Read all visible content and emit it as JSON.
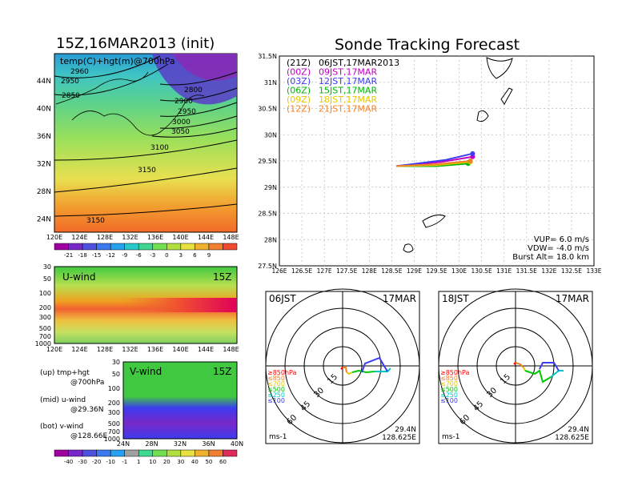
{
  "titles": {
    "main_left": "15Z,16MAR2013 (init)",
    "main_right": "Sonde Tracking Forecast"
  },
  "map_panel": {
    "label": "temp(C)+hgt(m)@700hPa",
    "lat_ticks": [
      "44N",
      "40N",
      "36N",
      "32N",
      "28N",
      "24N"
    ],
    "lon_ticks": [
      "120E",
      "124E",
      "128E",
      "132E",
      "136E",
      "140E",
      "144E",
      "148E"
    ],
    "contours": [
      "2950",
      "2960",
      "3000",
      "2800",
      "2850",
      "2900",
      "2950",
      "3000",
      "3050",
      "3100",
      "3150"
    ],
    "colorbar_labels": [
      "-21",
      "-18",
      "-15",
      "-12",
      "-9",
      "-6",
      "-3",
      "0",
      "3",
      "6",
      "9"
    ]
  },
  "u_panel": {
    "label": "U-wind",
    "time": "15Z",
    "p_ticks": [
      "30",
      "50",
      "100",
      "200",
      "300",
      "500",
      "700",
      "1000"
    ],
    "lon_ticks": [
      "120E",
      "124E",
      "128E",
      "132E",
      "136E",
      "140E",
      "144E",
      "148E"
    ]
  },
  "v_panel": {
    "label": "V-wind",
    "time": "15Z",
    "p_ticks": [
      "30",
      "50",
      "100",
      "200",
      "300",
      "500",
      "700",
      "1000"
    ],
    "lat_ticks": [
      "24N",
      "28N",
      "32N",
      "36N",
      "40N"
    ],
    "colorbar_labels": [
      "-40",
      "-30",
      "-20",
      "-10",
      "-1",
      "1",
      "10",
      "20",
      "30",
      "40",
      "50",
      "60"
    ]
  },
  "legend_notes": [
    "(up) tmp+hgt",
    "@700hPa",
    "(mid) u-wind",
    "@29.36N",
    "(bot) v-wind",
    "@128.66E"
  ],
  "track": {
    "legend": [
      {
        "code": "(21Z)",
        "text": "06JST,17MAR2013",
        "color": "#000000"
      },
      {
        "code": "(00Z)",
        "text": "09JST,17MAR",
        "color": "#c000c0"
      },
      {
        "code": "(03Z)",
        "text": "12JST,17MAR",
        "color": "#3c3cf0"
      },
      {
        "code": "(06Z)",
        "text": "15JST,17MAR",
        "color": "#00b400"
      },
      {
        "code": "(09Z)",
        "text": "18JST,17MAR",
        "color": "#e6c800"
      },
      {
        "code": "(12Z)",
        "text": "21JST,17MAR",
        "color": "#f08228"
      }
    ],
    "lat_ticks": [
      "31.5N",
      "31N",
      "30.5N",
      "30N",
      "29.5N",
      "29N",
      "28.5N",
      "28N",
      "27.5N"
    ],
    "lon_ticks": [
      "126E",
      "126.5E",
      "127E",
      "127.5E",
      "128E",
      "128.5E",
      "129E",
      "129.5E",
      "130E",
      "130.5E",
      "131E",
      "131.5E",
      "132E",
      "132.5E",
      "133E"
    ],
    "params": [
      "VUP=  6.0  m/s",
      "VDW= -4.0  m/s",
      "Burst Alt= 18.0  km"
    ]
  },
  "hodo_left": {
    "time": "06JST",
    "date": "17MAR",
    "rings": [
      "15",
      "30",
      "45",
      "60"
    ],
    "levels": [
      "≥850hPa",
      "≤850",
      "≤700",
      "≤500",
      "≤250",
      "≤100"
    ],
    "level_colors": [
      "#ff0000",
      "#f08228",
      "#e6c800",
      "#00c800",
      "#00c8c8",
      "#3c3cf0"
    ],
    "unit": "ms-1",
    "lat": "29.4N",
    "lon": "128.625E"
  },
  "hodo_right": {
    "time": "18JST",
    "date": "17MAR",
    "rings": [
      "15",
      "30",
      "45",
      "60"
    ],
    "levels": [
      "≥850hPa",
      "≤850",
      "≤700",
      "≤500",
      "≤250",
      "≤100"
    ],
    "level_colors": [
      "#ff0000",
      "#f08228",
      "#e6c800",
      "#00c800",
      "#00c8c8",
      "#3c3cf0"
    ],
    "unit": "ms-1",
    "lat": "29.4N",
    "lon": "128.625E"
  },
  "chart_data": {
    "type": "line",
    "title": "Sonde Tracking Forecast",
    "xlabel": "",
    "ylabel": "",
    "xlim": [
      126,
      133
    ],
    "ylim": [
      27.5,
      31.5
    ],
    "series": [
      {
        "name": "06JST,17MAR2013",
        "color": "#000000",
        "x": [
          128.6,
          129.5,
          130.2
        ],
        "y": [
          29.4,
          29.43,
          29.47
        ]
      },
      {
        "name": "09JST,17MAR",
        "color": "#c000c0",
        "x": [
          128.6,
          129.6,
          130.3
        ],
        "y": [
          29.4,
          29.48,
          29.58
        ]
      },
      {
        "name": "12JST,17MAR",
        "color": "#3c3cf0",
        "x": [
          128.6,
          129.7,
          130.3
        ],
        "y": [
          29.4,
          29.52,
          29.64
        ]
      },
      {
        "name": "15JST,17MAR",
        "color": "#00b400",
        "x": [
          128.6,
          129.5,
          130.2
        ],
        "y": [
          29.4,
          29.4,
          29.45
        ]
      },
      {
        "name": "18JST,17MAR",
        "color": "#e6c800",
        "x": [
          128.6,
          129.5,
          130.25
        ],
        "y": [
          29.4,
          29.42,
          29.48
        ]
      },
      {
        "name": "21JST,17MAR",
        "color": "#f08228",
        "x": [
          128.6,
          129.55,
          130.25
        ],
        "y": [
          29.4,
          29.44,
          29.5
        ]
      }
    ]
  }
}
